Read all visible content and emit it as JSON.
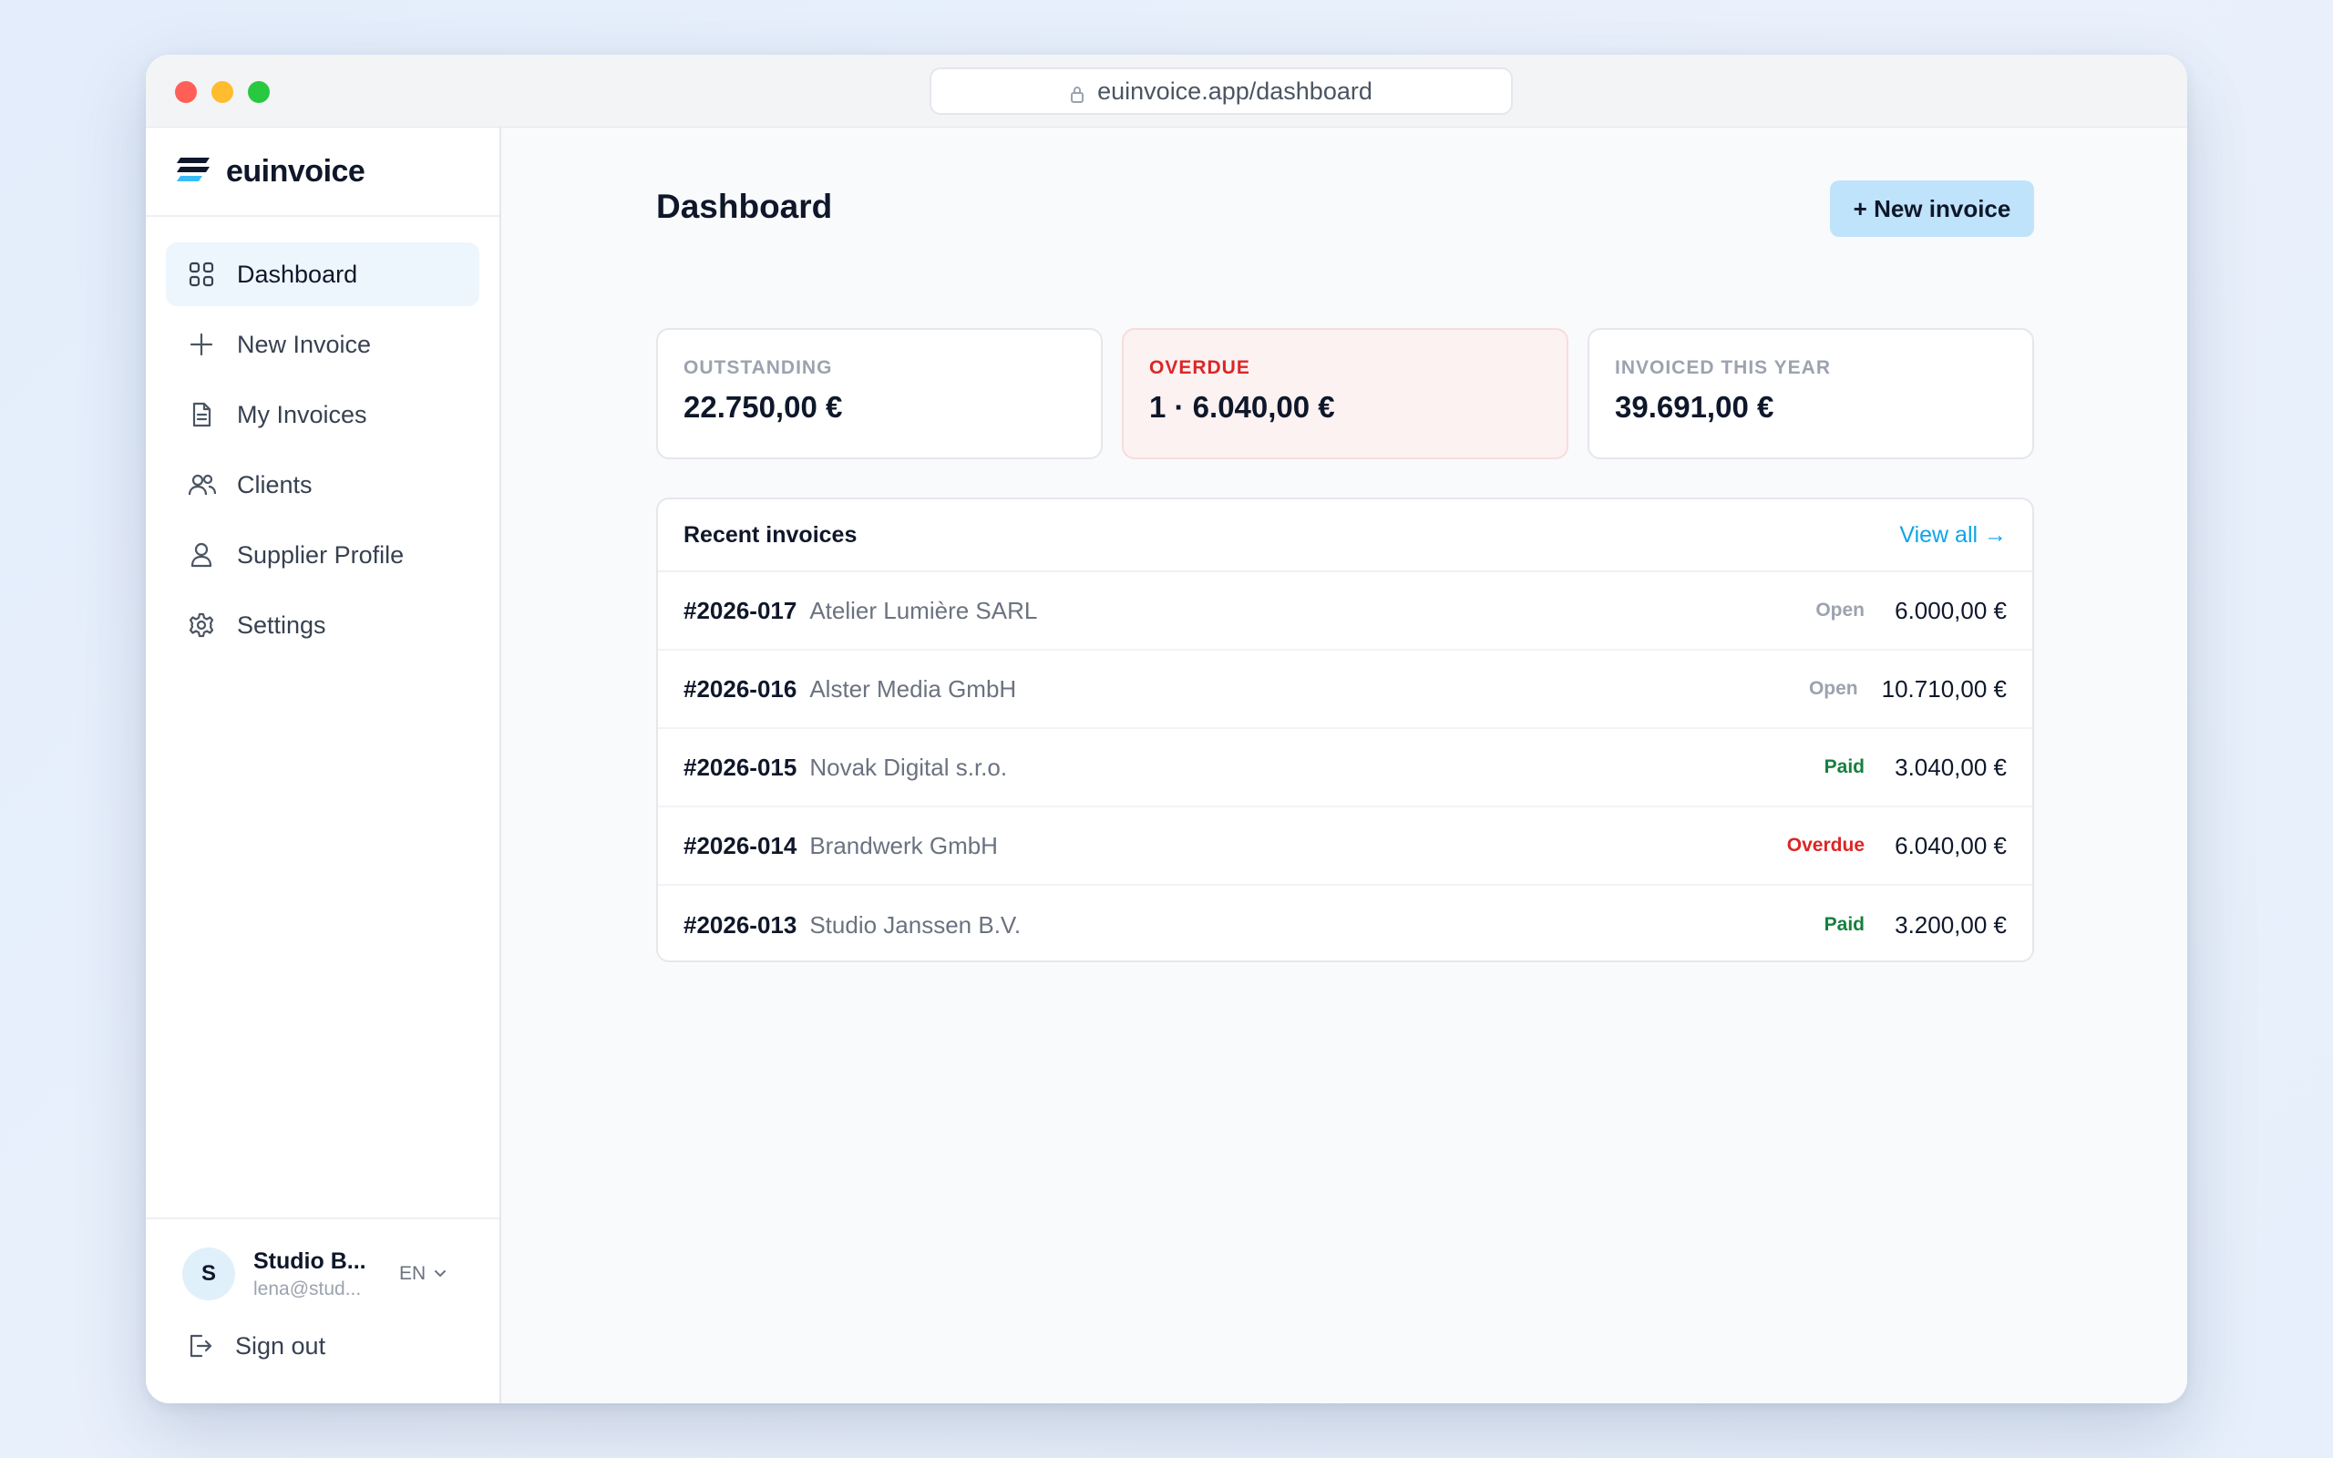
{
  "browser": {
    "url": "euinvoice.app/dashboard"
  },
  "brand": {
    "name": "euinvoice"
  },
  "sidebar": {
    "items": [
      {
        "label": "Dashboard",
        "icon": "grid-icon",
        "active": true
      },
      {
        "label": "New Invoice",
        "icon": "plus-icon"
      },
      {
        "label": "My Invoices",
        "icon": "document-icon"
      },
      {
        "label": "Clients",
        "icon": "users-icon"
      },
      {
        "label": "Supplier Profile",
        "icon": "user-icon"
      },
      {
        "label": "Settings",
        "icon": "gear-icon"
      }
    ],
    "account": {
      "initial": "S",
      "name": "Studio B...",
      "email": "lena@stud...",
      "language": "EN"
    },
    "signout_label": "Sign out"
  },
  "main": {
    "title": "Dashboard",
    "new_invoice_label": "+ New invoice",
    "stats": [
      {
        "label": "OUTSTANDING",
        "value": "22.750,00 €"
      },
      {
        "label": "OVERDUE",
        "value": "1 · 6.040,00 €"
      },
      {
        "label": "INVOICED THIS YEAR",
        "value": "39.691,00 €"
      }
    ],
    "recent": {
      "title": "Recent invoices",
      "view_all_label": "View all →",
      "rows": [
        {
          "number": "#2026-017",
          "client": "Atelier Lumière SARL",
          "status": "Open",
          "amount": "6.000,00 €"
        },
        {
          "number": "#2026-016",
          "client": "Alster Media GmbH",
          "status": "Open",
          "amount": "10.710,00 €"
        },
        {
          "number": "#2026-015",
          "client": "Novak Digital s.r.o.",
          "status": "Paid",
          "amount": "3.040,00 €"
        },
        {
          "number": "#2026-014",
          "client": "Brandwerk GmbH",
          "status": "Overdue",
          "amount": "6.040,00 €"
        },
        {
          "number": "#2026-013",
          "client": "Studio Janssen B.V.",
          "status": "Paid",
          "amount": "3.200,00 €"
        }
      ]
    }
  },
  "colors": {
    "accent": "#0ea5e9",
    "button_bg": "#bfe3fa",
    "overdue": "#dc2626",
    "paid": "#15803d",
    "open": "#9ca3af"
  }
}
